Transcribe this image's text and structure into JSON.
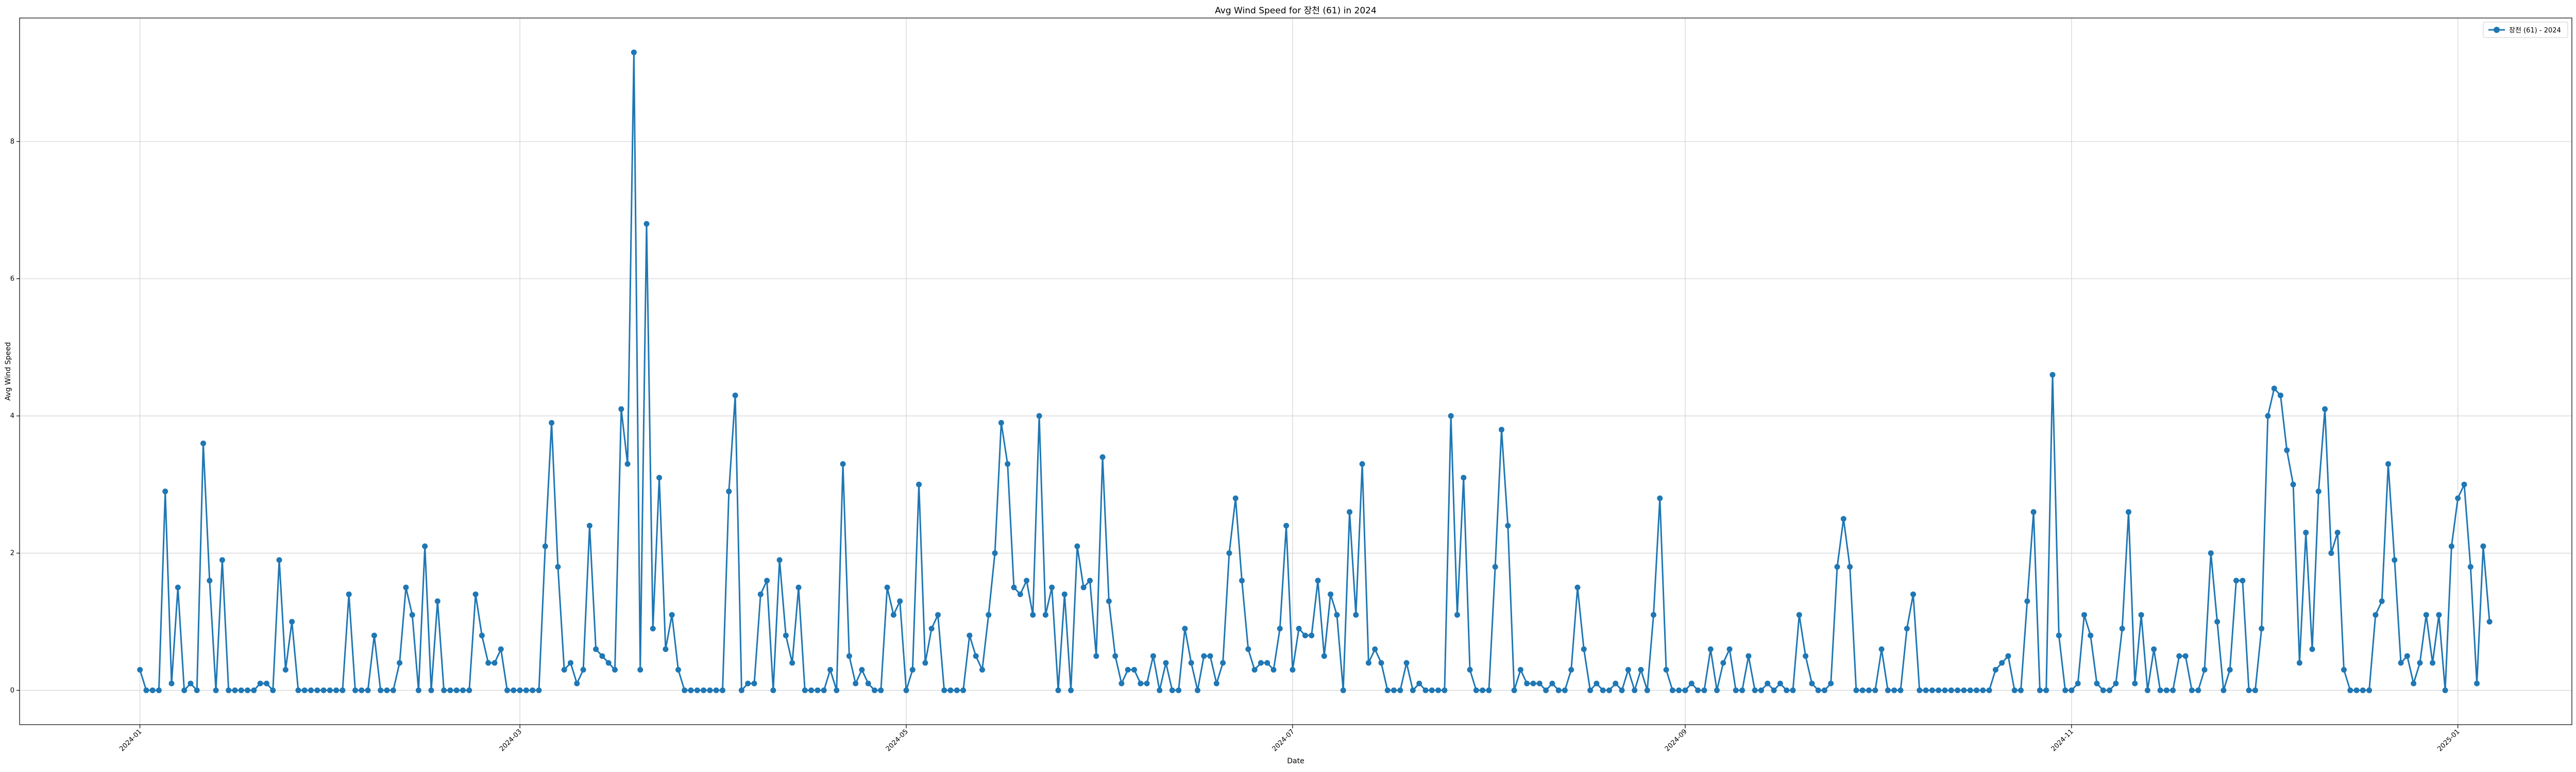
{
  "chart_data": {
    "type": "line",
    "title": "Avg Wind Speed for 장천 (61) in 2024",
    "xlabel": "Date",
    "ylabel": "Avg Wind Speed",
    "x_ticks": [
      "2024-01",
      "2024-03",
      "2024-05",
      "2024-07",
      "2024-09",
      "2024-11",
      "2025-01"
    ],
    "y_ticks": [
      0,
      2,
      4,
      6,
      8
    ],
    "xlim": [
      "2023-12-13",
      "2025-01-19"
    ],
    "ylim": [
      -0.5,
      9.8
    ],
    "grid": true,
    "legend_position": "top-right",
    "colors": {
      "series": "#1f77b4",
      "grid": "#d3d3d3",
      "axis": "#000000"
    },
    "series": [
      {
        "name": "장천 (61) - 2024",
        "start_date": "2024-01-01",
        "values": [
          0.3,
          0,
          0,
          0,
          2.9,
          0.1,
          1.5,
          0,
          0.1,
          0,
          3.6,
          1.6,
          0,
          1.9,
          0,
          0,
          0,
          0,
          0,
          0.1,
          0.1,
          0,
          1.9,
          0.3,
          1.0,
          0,
          0,
          0,
          0,
          0,
          0,
          0,
          0,
          1.4,
          0,
          0,
          0,
          0.8,
          0,
          0,
          0,
          0.4,
          1.5,
          1.1,
          0,
          2.1,
          0,
          1.3,
          0,
          0,
          0,
          0,
          0,
          1.4,
          0.8,
          0.4,
          0.4,
          0.6,
          0,
          0,
          0,
          0,
          0,
          0,
          2.1,
          3.9,
          1.8,
          0.3,
          0.4,
          0.1,
          0.3,
          2.4,
          0.6,
          0.5,
          0.4,
          0.3,
          4.1,
          3.3,
          9.3,
          0.3,
          6.8,
          0.9,
          3.1,
          0.6,
          1.1,
          0.3,
          0,
          0,
          0,
          0,
          0,
          0,
          0,
          2.9,
          4.3,
          0,
          0.1,
          0.1,
          1.4,
          1.6,
          0,
          1.9,
          0.8,
          0.4,
          1.5,
          0,
          0,
          0,
          0,
          0.3,
          0,
          3.3,
          0.5,
          0.1,
          0.3,
          0.1,
          0,
          0,
          1.5,
          1.1,
          1.3,
          0,
          0.3,
          3.0,
          0.4,
          0.9,
          1.1,
          0,
          0,
          0,
          0,
          0.8,
          0.5,
          0.3,
          1.1,
          2.0,
          3.9,
          3.3,
          1.5,
          1.4,
          1.6,
          1.1,
          4.0,
          1.1,
          1.5,
          0,
          1.4,
          0,
          2.1,
          1.5,
          1.6,
          0.5,
          3.4,
          1.3,
          0.5,
          0.1,
          0.3,
          0.3,
          0.1,
          0.1,
          0.5,
          0,
          0.4,
          0,
          0,
          0.9,
          0.4,
          0,
          0.5,
          0.5,
          0.1,
          0.4,
          2.0,
          2.8,
          1.6,
          0.6,
          0.3,
          0.4,
          0.4,
          0.3,
          0.9,
          2.4,
          0.3,
          0.9,
          0.8,
          0.8,
          1.6,
          0.5,
          1.4,
          1.1,
          0,
          2.6,
          1.1,
          3.3,
          0.4,
          0.6,
          0.4,
          0,
          0,
          0,
          0.4,
          0,
          0.1,
          0,
          0,
          0,
          0,
          4.0,
          1.1,
          3.1,
          0.3,
          0,
          0,
          0,
          1.8,
          3.8,
          2.4,
          0,
          0.3,
          0.1,
          0.1,
          0.1,
          0,
          0.1,
          0,
          0,
          0.3,
          1.5,
          0.6,
          0,
          0.1,
          0,
          0,
          0.1,
          0,
          0.3,
          0,
          0.3,
          0,
          1.1,
          2.8,
          0.3,
          0,
          0,
          0,
          0.1,
          0,
          0,
          0.6,
          0,
          0.4,
          0.6,
          0,
          0,
          0.5,
          0,
          0,
          0.1,
          0,
          0.1,
          0,
          0,
          1.1,
          0.5,
          0.1,
          0,
          0,
          0.1,
          1.8,
          2.5,
          1.8,
          0,
          0,
          0,
          0,
          0.6,
          0,
          0,
          0,
          0.9,
          1.4,
          0,
          0,
          0,
          0,
          0,
          0,
          0,
          0,
          0,
          0,
          0,
          0,
          0.3,
          0.4,
          0.5,
          0,
          0,
          1.3,
          2.6,
          0,
          0,
          4.6,
          0.8,
          0,
          0,
          0.1,
          1.1,
          0.8,
          0.1,
          0,
          0,
          0.1,
          0.9,
          2.6,
          0.1,
          1.1,
          0,
          0.6,
          0,
          0,
          0,
          0.5,
          0.5,
          0,
          0,
          0.3,
          2.0,
          1.0,
          0,
          0.3,
          1.6,
          1.6,
          0,
          0,
          0.9,
          4.0,
          4.4,
          4.3,
          3.5,
          3.0,
          0.4,
          2.3,
          0.6,
          2.9,
          4.1,
          2.0,
          2.3,
          0.3,
          0,
          0,
          0,
          0,
          1.1,
          1.3,
          3.3,
          1.9,
          0.4,
          0.5,
          0.1,
          0.4,
          1.1,
          0.4,
          1.1,
          0,
          2.1,
          2.8,
          3.0,
          1.8,
          0.1,
          2.1,
          1.0
        ]
      }
    ]
  }
}
